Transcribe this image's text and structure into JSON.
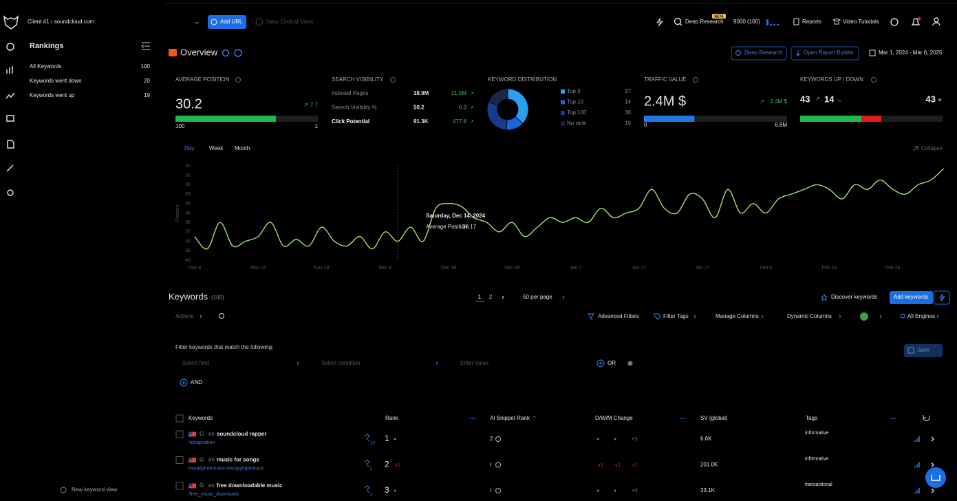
{
  "header": {
    "client": "Client #1 › soundcloud.com",
    "add_url": "Add URL",
    "new_view": "New Global View",
    "deep_research": "Deep Research",
    "beta": "BETA",
    "credits": "9000 (100)",
    "reports": "Reports",
    "video_tutorials": "Video Tutorials"
  },
  "sidebar": {
    "title": "Rankings",
    "items": [
      {
        "label": "All Keywords",
        "count": 100
      },
      {
        "label": "Keywords went down",
        "count": 20
      },
      {
        "label": "Keywords went up",
        "count": 19
      }
    ],
    "footer": "New keyword view"
  },
  "overview": {
    "title": "Overview",
    "deep_research": "Deep Research",
    "report_builder": "Open Report Builder",
    "date_range": "Mar 1, 2024 - Mar 6, 2025"
  },
  "cards": {
    "average_position": {
      "title": "AVERAGE POSITION",
      "value": 30.2,
      "change": 7.7,
      "scale": [
        100,
        1
      ],
      "color": "#1fb84a"
    },
    "search_visibility": {
      "title": "SEARCH VISIBILITY",
      "rows": [
        {
          "label": "Indexed Pages",
          "value": "38.9M",
          "change": "21.5M"
        },
        {
          "label": "Search Visibility %",
          "value": "50.2",
          "change": "0.3"
        },
        {
          "label": "Click Potential",
          "value": "91.3K",
          "change": "477.8"
        }
      ]
    },
    "keyword_distribution": {
      "title": "KEYWORD DISTRIBUTION",
      "segments": [
        {
          "name": "Top 3",
          "value": 37,
          "color": "#2b9ff0"
        },
        {
          "name": "Top 10",
          "value": 14,
          "color": "#1a66d6"
        },
        {
          "name": "Top 100",
          "value": 30,
          "color": "#183c8c"
        },
        {
          "name": "No rank",
          "value": 19,
          "color": "#1a2846"
        }
      ]
    },
    "traffic_value": {
      "title": "TRAFFIC VALUE",
      "value": 2400000,
      "value_label": "2.4M $",
      "change": "2.4M $",
      "scale": [
        0,
        {
          "value": 6800000,
          "label": "6.8M"
        }
      ],
      "color": "#1f7ae6"
    },
    "keywords_up_down": {
      "title": "KEYWORDS UP / DOWN",
      "up": 43,
      "down": 14,
      "unchanged": 43,
      "colors": [
        "#1fb84a",
        "#e01b1b",
        "#1e1e1e"
      ]
    }
  },
  "chart_data": {
    "type": "line",
    "tabs": [
      "Day",
      "Week",
      "Month"
    ],
    "collapse": "Collapse",
    "ylabel": "Position",
    "color": "#a6e36e",
    "categories": [
      "Nov 8",
      null,
      null,
      null,
      null,
      "Nov 18",
      null,
      null,
      null,
      null,
      "Nov 28",
      null,
      null,
      null,
      null,
      "Dec 8",
      null,
      null,
      null,
      null,
      "Dec 18",
      null,
      null,
      null,
      null,
      "Dec 28",
      null,
      null,
      null,
      null,
      "Jan 7",
      null,
      null,
      null,
      null,
      "Jan 17",
      null,
      null,
      null,
      null,
      "Jan 27",
      null,
      null,
      null,
      null,
      "Feb 6",
      null,
      null,
      null,
      null,
      "Feb 16",
      null,
      null,
      null,
      null,
      "Feb 26",
      null,
      null,
      null,
      null
    ],
    "values": [
      37.5,
      38.8,
      36.0,
      38.5,
      38.0,
      37.5,
      36.0,
      38.5,
      37.8,
      38.5,
      36.5,
      38.0,
      38.5,
      37.5,
      38.8,
      37.0,
      38.0,
      36.5,
      38.0,
      34.5,
      34.0,
      34.3,
      35.5,
      36.0,
      37.0,
      36.0,
      37.5,
      36.5,
      35.5,
      36.0,
      35.5,
      36.0,
      34.5,
      35.5,
      35.0,
      34.5,
      32.5,
      34.5,
      35.0,
      33.0,
      33.5,
      35.5,
      32.5,
      35.0,
      34.0,
      35.0,
      33.5,
      33.0,
      32.5,
      32.0,
      32.5,
      33.5,
      32.0,
      32.5,
      31.5,
      32.5,
      33.0,
      32.0,
      31.5,
      30.3
    ],
    "ylim": [
      40,
      30
    ],
    "yticks": [
      30,
      31,
      32,
      33,
      34,
      35,
      36,
      37,
      38,
      39,
      40
    ],
    "grid": false,
    "tooltip": {
      "date": "Saturday, Dec 14, 2024",
      "label": "Average Position:",
      "value": 36.17
    }
  },
  "keywords": {
    "title": "Keywords",
    "count": "(100)",
    "pages": [
      "1",
      "2"
    ],
    "per_page": "50 per page",
    "discover": "Discover keywords",
    "add": "Add keywords",
    "toolbar": {
      "actions": "Actions",
      "advanced_filters": "Advanced Filters",
      "filter_tags": "Filter Tags",
      "manage_columns": "Manage Columns",
      "dynamic_columns": "Dynamic Columns",
      "all_engines": "All Engines"
    },
    "filter": {
      "prompt": "Filter keywords that match the following:",
      "field": "Select field",
      "condition": "Select condition",
      "value": "Enter Value",
      "or": "OR",
      "and": "AND",
      "save": "Save"
    },
    "table": {
      "columns": [
        "Keywords",
        "Rank",
        "AI Snippet Rank",
        "D/W/M Change",
        "SV (global)",
        "Tags"
      ],
      "rows": [
        {
          "engine": "G",
          "lang": "en",
          "keyword": "soundcloud rapper",
          "url": "/allrapnation",
          "links": "19",
          "rank": "1",
          "rank_change": "●",
          "ai_rank": "2",
          "dwm": [
            "●",
            "●",
            "↗1"
          ],
          "sv": "6.6K",
          "tag": "informative"
        },
        {
          "engine": "G",
          "lang": "en",
          "keyword": "music for songs",
          "url": "/royaltyfreemusic-nocopyrightmusic",
          "links": "2",
          "rank": "2",
          "rank_change": "↘1",
          "ai_rank": "/",
          "dwm": [
            "↘1",
            "↘1",
            "↘1"
          ],
          "sv": "201.0K",
          "tag": "informative"
        },
        {
          "engine": "G",
          "lang": "en",
          "keyword": "free downloadable music",
          "url": "/free_music_downloads",
          "links": "2",
          "rank": "3",
          "rank_change": "●",
          "ai_rank": "/",
          "dwm": [
            "●",
            "●",
            "↗2"
          ],
          "sv": "33.1K",
          "tag": "transactional"
        }
      ]
    }
  }
}
